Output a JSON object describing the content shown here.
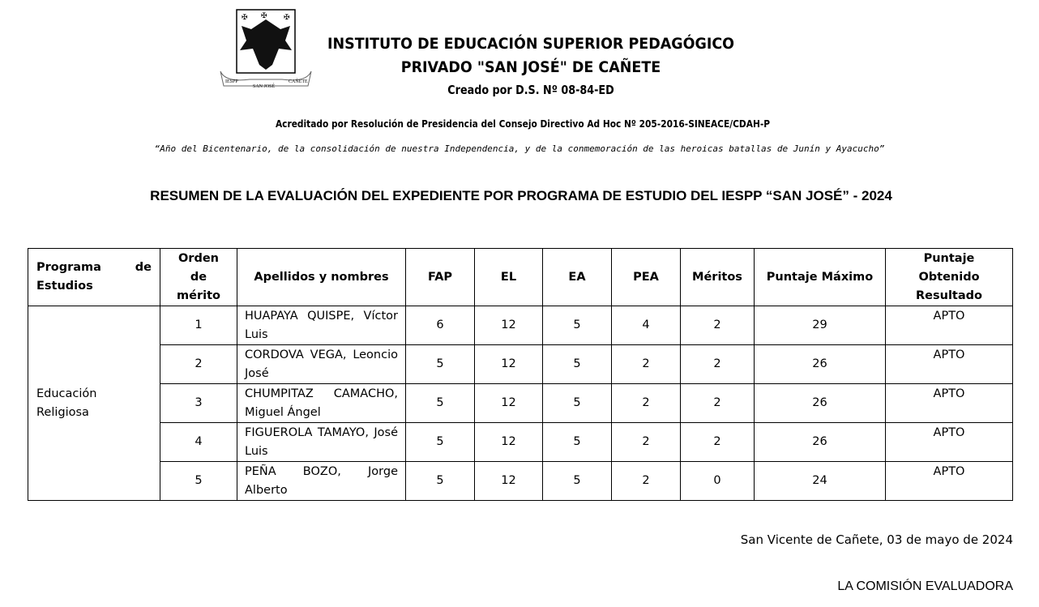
{
  "header": {
    "line1": "INSTITUTO DE EDUCACIÓN SUPERIOR PEDAGÓGICO",
    "line2": "PRIVADO \"SAN JOSÉ\" DE CAÑETE",
    "decree": "Creado por D.S. Nº 08-84-ED",
    "accreditation": "Acreditado por Resolución de Presidencia del Consejo Directivo Ad Hoc Nº 205-2016-SINEACE/CDAH-P",
    "motto": "“Año del Bicentenario, de la consolidación de nuestra Independencia, y de la conmemoración de las heroicas batallas de Junín y Ayacucho”",
    "logo_text": [
      "IESPP",
      "SAN JOSÉ",
      "CAÑETE"
    ]
  },
  "title": "RESUMEN DE LA EVALUACIÓN DEL EXPEDIENTE POR PROGRAMA DE ESTUDIO DEL IESPP “SAN JOSÉ” - 2024",
  "table": {
    "headers": [
      "Programa de Estudios",
      "Orden de mérito",
      "Apellidos y nombres",
      "FAP",
      "EL",
      "EA",
      "PEA",
      "Méritos",
      "Puntaje Máximo",
      "Puntaje Obtenido Resultado"
    ],
    "program": "Educación Religiosa",
    "rows": [
      {
        "order": "1",
        "name": "HUAPAYA QUISPE, Víctor Luis",
        "fap": "6",
        "el": "12",
        "ea": "5",
        "pea": "4",
        "meritos": "2",
        "max": "29",
        "result": "APTO"
      },
      {
        "order": "2",
        "name": "CORDOVA VEGA, Leoncio José",
        "fap": "5",
        "el": "12",
        "ea": "5",
        "pea": "2",
        "meritos": "2",
        "max": "26",
        "result": "APTO"
      },
      {
        "order": "3",
        "name": "CHUMPITAZ CAMACHO, Miguel Ángel",
        "fap": "5",
        "el": "12",
        "ea": "5",
        "pea": "2",
        "meritos": "2",
        "max": "26",
        "result": "APTO"
      },
      {
        "order": "4",
        "name": "FIGUEROLA TAMAYO, José Luis",
        "fap": "5",
        "el": "12",
        "ea": "5",
        "pea": "2",
        "meritos": "2",
        "max": "26",
        "result": "APTO"
      },
      {
        "order": "5",
        "name": "PEÑA BOZO, Jorge Alberto",
        "fap": "5",
        "el": "12",
        "ea": "5",
        "pea": "2",
        "meritos": "0",
        "max": "24",
        "result": "APTO"
      }
    ]
  },
  "footer": {
    "place_date": "San Vicente de Cañete, 03 de mayo de 2024",
    "signature": "LA COMISIÓN EVALUADORA"
  }
}
